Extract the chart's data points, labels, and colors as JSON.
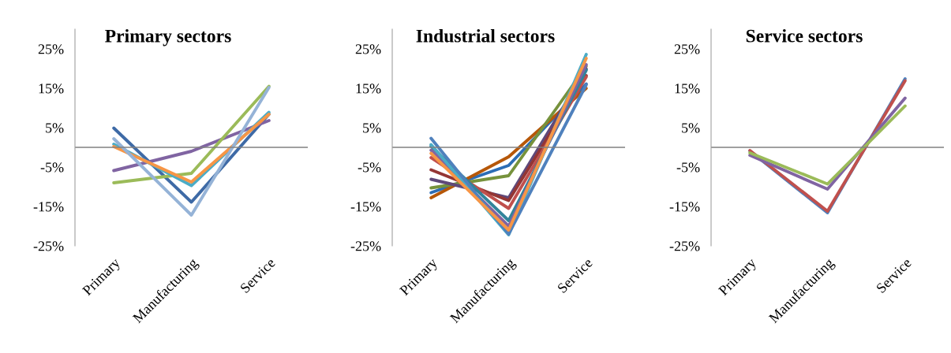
{
  "chart_data": [
    {
      "type": "line",
      "title": "Primary sectors",
      "categories": [
        "Primary",
        "Manufacturing",
        "Service"
      ],
      "ylim": [
        -25,
        30
      ],
      "yticks": [
        {
          "value": -25,
          "label": "-25%"
        },
        {
          "value": -15,
          "label": "-15%"
        },
        {
          "value": -5,
          "label": "-5%"
        },
        {
          "value": 5,
          "label": "5%"
        },
        {
          "value": 15,
          "label": "15%"
        },
        {
          "value": 25,
          "label": "25%"
        }
      ],
      "ref_lines": [
        {
          "axis": "y",
          "value": 0,
          "color": "#808080"
        }
      ],
      "grid": false,
      "legend": false,
      "series": [
        {
          "color": "#3e6aa6",
          "values": [
            4.9,
            -13.9,
            8.4
          ]
        },
        {
          "color": "#8064a2",
          "values": [
            -5.9,
            -1.0,
            6.8
          ]
        },
        {
          "color": "#9bbb59",
          "values": [
            -9.0,
            -6.6,
            15.5
          ]
        },
        {
          "color": "#4bacc6",
          "values": [
            0.8,
            -9.7,
            8.9
          ]
        },
        {
          "color": "#f79646",
          "values": [
            0.2,
            -8.8,
            8.4
          ]
        },
        {
          "color": "#95b3d7",
          "values": [
            2.2,
            -17.2,
            15.2
          ]
        }
      ]
    },
    {
      "type": "line",
      "title": "Industrial sectors",
      "categories": [
        "Primary",
        "Manufacturing",
        "Service"
      ],
      "ylim": [
        -25,
        30
      ],
      "yticks": [
        {
          "value": -25,
          "label": "-25%"
        },
        {
          "value": -15,
          "label": "-15%"
        },
        {
          "value": -5,
          "label": "-5%"
        },
        {
          "value": 5,
          "label": "5%"
        },
        {
          "value": 15,
          "label": "15%"
        },
        {
          "value": 25,
          "label": "25%"
        }
      ],
      "ref_lines": [
        {
          "axis": "y",
          "value": 0,
          "color": "#808080"
        }
      ],
      "grid": false,
      "legend": false,
      "series": [
        {
          "color": "#2c6db5",
          "values": [
            -11.5,
            -4.6,
            16.1
          ]
        },
        {
          "color": "#b65708",
          "values": [
            -12.8,
            -2.4,
            15.0
          ]
        },
        {
          "color": "#76923c",
          "values": [
            -10.3,
            -7.2,
            20.6
          ]
        },
        {
          "color": "#5f497a",
          "values": [
            -8.1,
            -12.8,
            19.9
          ]
        },
        {
          "color": "#943634",
          "values": [
            -5.7,
            -13.5,
            18.2
          ]
        },
        {
          "color": "#c0504d",
          "values": [
            -2.6,
            -15.5,
            17.9
          ]
        },
        {
          "color": "#31849b",
          "values": [
            0.3,
            -18.6,
            19.6
          ]
        },
        {
          "color": "#8064a2",
          "values": [
            -0.7,
            -20.0,
            21.0
          ]
        },
        {
          "color": "#4bacc6",
          "values": [
            0.7,
            -22.2,
            23.6
          ]
        },
        {
          "color": "#4f81bd",
          "values": [
            2.3,
            -22.0,
            15.9
          ]
        },
        {
          "color": "#f79646",
          "values": [
            -1.5,
            -21.0,
            22.6
          ]
        }
      ]
    },
    {
      "type": "line",
      "title": "Service sectors",
      "categories": [
        "Primary",
        "Manufacturing",
        "Service"
      ],
      "ylim": [
        -25,
        30
      ],
      "yticks": [
        {
          "value": -25,
          "label": "-25%"
        },
        {
          "value": -15,
          "label": "-15%"
        },
        {
          "value": -5,
          "label": "-5%"
        },
        {
          "value": 5,
          "label": "5%"
        },
        {
          "value": 15,
          "label": "15%"
        },
        {
          "value": 25,
          "label": "25%"
        }
      ],
      "ref_lines": [
        {
          "axis": "y",
          "value": 0,
          "color": "#808080"
        }
      ],
      "grid": false,
      "legend": false,
      "series": [
        {
          "color": "#4f81bd",
          "values": [
            -0.9,
            -16.6,
            17.4
          ]
        },
        {
          "color": "#c0504d",
          "values": [
            -0.8,
            -16.2,
            16.9
          ]
        },
        {
          "color": "#8064a2",
          "values": [
            -2.0,
            -10.6,
            12.5
          ]
        },
        {
          "color": "#9bbb59",
          "values": [
            -1.4,
            -9.3,
            10.5
          ]
        }
      ]
    }
  ]
}
